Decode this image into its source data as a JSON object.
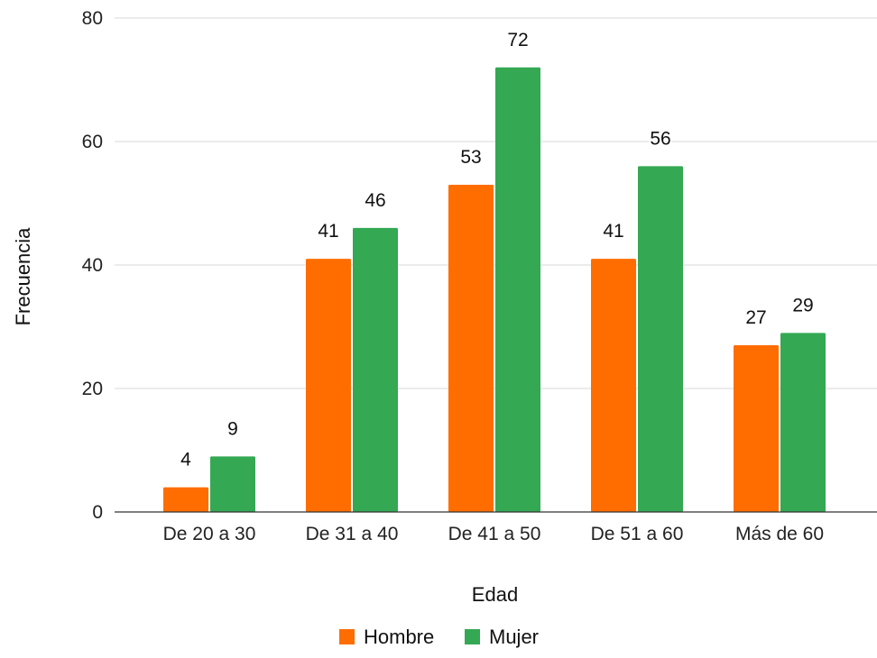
{
  "chart_data": {
    "type": "bar",
    "title": "",
    "xlabel": "Edad",
    "ylabel": "Frecuencia",
    "ylim": [
      0,
      80
    ],
    "yticks": [
      0,
      20,
      40,
      60,
      80
    ],
    "grid": true,
    "legend_position": "bottom",
    "categories": [
      "De 20 a 30",
      "De 31 a 40",
      "De 41 a 50",
      "De 51 a 60",
      "Más de 60"
    ],
    "series": [
      {
        "name": "Hombre",
        "color": "#ff6d01",
        "values": [
          4,
          41,
          53,
          41,
          27
        ]
      },
      {
        "name": "Mujer",
        "color": "#34a853",
        "values": [
          9,
          46,
          72,
          56,
          29
        ]
      }
    ]
  }
}
